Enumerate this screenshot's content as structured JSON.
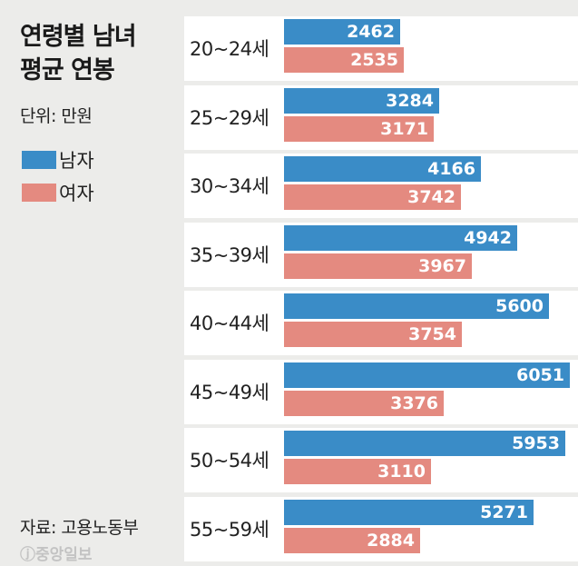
{
  "title_line1": "연령별 남녀",
  "title_line2": "평균 연봉",
  "unit": "단위: 만원",
  "legend": [
    {
      "label": "남자",
      "color": "#3a8cc7"
    },
    {
      "label": "여자",
      "color": "#e48a80"
    }
  ],
  "source": "자료: 고용노동부",
  "logo": "ⓙ중앙일보",
  "colors": {
    "male": "#3a8cc7",
    "female": "#e48a80",
    "background": "#ececea",
    "panel": "#ffffff"
  },
  "chart_data": {
    "type": "bar",
    "orientation": "horizontal",
    "title": "연령별 남녀 평균 연봉",
    "subtitle": "단위: 만원",
    "xlabel": "",
    "ylabel": "",
    "categories": [
      "20~24세",
      "25~29세",
      "30~34세",
      "35~39세",
      "40~44세",
      "45~49세",
      "50~54세",
      "55~59세"
    ],
    "series": [
      {
        "name": "남자",
        "values": [
          2462,
          3284,
          4166,
          4942,
          5600,
          6051,
          5953,
          5271
        ]
      },
      {
        "name": "여자",
        "values": [
          2535,
          3171,
          3742,
          3967,
          3754,
          3376,
          3110,
          2884
        ]
      }
    ],
    "data_labels": true,
    "grid": false,
    "legend_position": "left",
    "source": "자료: 고용노동부"
  }
}
